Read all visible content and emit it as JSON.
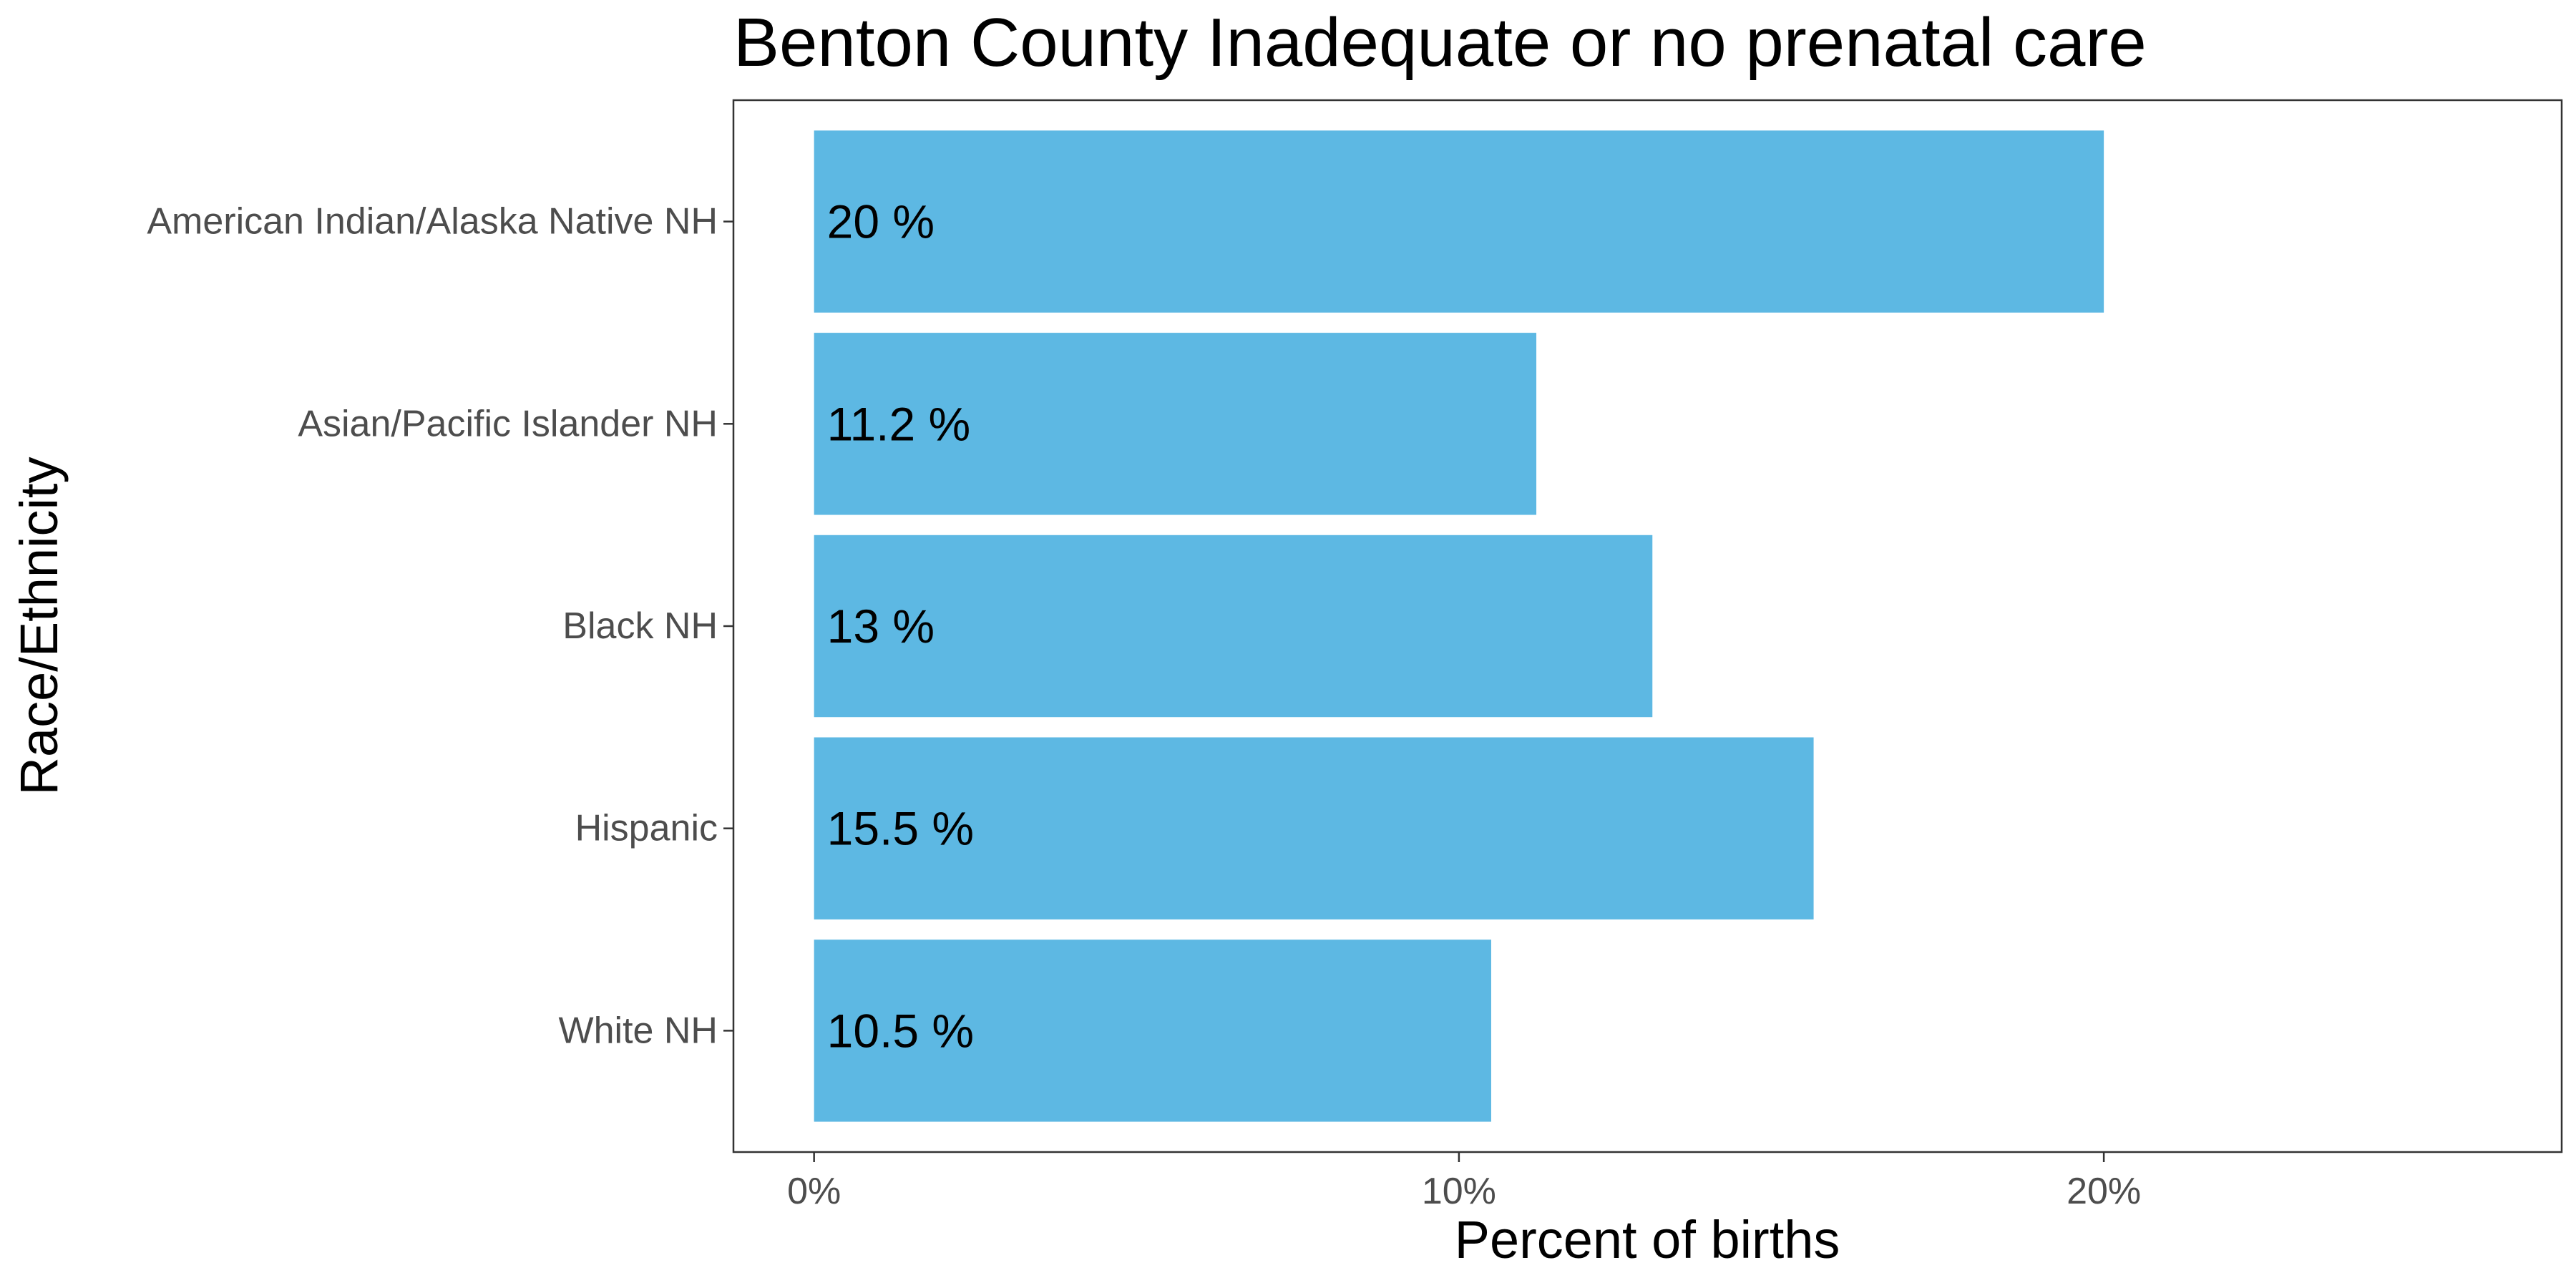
{
  "chart_data": {
    "type": "bar",
    "orientation": "horizontal",
    "title": "Benton County Inadequate or no prenatal care",
    "xlabel": "Percent of births",
    "ylabel": "Race/Ethnicity",
    "categories": [
      "American Indian/Alaska Native NH",
      "Asian/Pacific Islander NH",
      "Black NH",
      "Hispanic",
      "White NH"
    ],
    "values": [
      20,
      11.2,
      13,
      15.5,
      10.5
    ],
    "data_labels": [
      "20 %",
      "11.2 %",
      "13 %",
      "15.5 %",
      "10.5 %"
    ],
    "xlim": [
      -1.25,
      27.1
    ],
    "xticks": [
      0,
      10,
      20
    ],
    "xtick_labels": [
      "0%",
      "10%",
      "20%"
    ],
    "bar_color": "#5DB8E3",
    "grid": false
  }
}
